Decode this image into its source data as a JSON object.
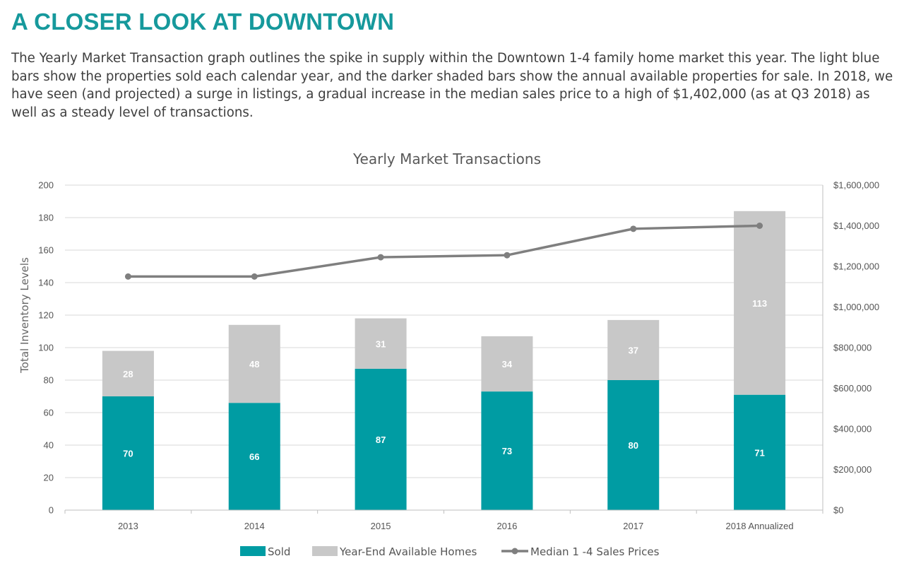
{
  "page": {
    "heading": "A CLOSER LOOK AT DOWNTOWN",
    "intro": "The Yearly Market Transaction graph outlines the spike in supply within the Downtown 1-4 family home market this year. The light blue bars show the properties sold each calendar year, and the darker shaded bars show the annual available properties for sale. In 2018, we have seen (and projected) a surge in listings, a gradual increase in the median sales price to a high of $1,402,000 (as at Q3 2018) as well as a steady level of transactions."
  },
  "chart_data": {
    "type": "bar",
    "stacked": true,
    "title": "Yearly Market Transactions",
    "ylabel": "Total Inventory Levels",
    "xlabel": "",
    "ylim": [
      0,
      200
    ],
    "yticks": [
      "0",
      "20",
      "40",
      "60",
      "80",
      "100",
      "120",
      "140",
      "160",
      "180",
      "200"
    ],
    "y2lim": [
      0,
      1600000
    ],
    "y2ticks": [
      "$0",
      "$200,000",
      "$400,000",
      "$600,000",
      "$800,000",
      "$1,000,000",
      "$1,200,000",
      "$1,400,000",
      "$1,600,000"
    ],
    "categories": [
      "2013",
      "2014",
      "2015",
      "2016",
      "2017",
      "2018 Annualized"
    ],
    "grid": true,
    "legend_position": "bottom",
    "series": [
      {
        "name": "Sold",
        "kind": "bar",
        "axis": "left",
        "color": "#009ca3",
        "values": [
          70,
          66,
          87,
          73,
          80,
          71
        ],
        "labels": [
          "70",
          "66",
          "87",
          "73",
          "80",
          "71"
        ]
      },
      {
        "name": "Year-End Available Homes",
        "kind": "bar",
        "axis": "left",
        "color": "#c8c8c8",
        "values": [
          28,
          48,
          31,
          34,
          37,
          113
        ],
        "labels": [
          "28",
          "48",
          "31",
          "34",
          "37",
          "113"
        ]
      },
      {
        "name": "Median 1 -4 Sales Prices",
        "kind": "line",
        "axis": "right",
        "color": "#7f7f7f",
        "values": [
          1150000,
          1150000,
          1245000,
          1255000,
          1385000,
          1400000
        ]
      }
    ]
  }
}
